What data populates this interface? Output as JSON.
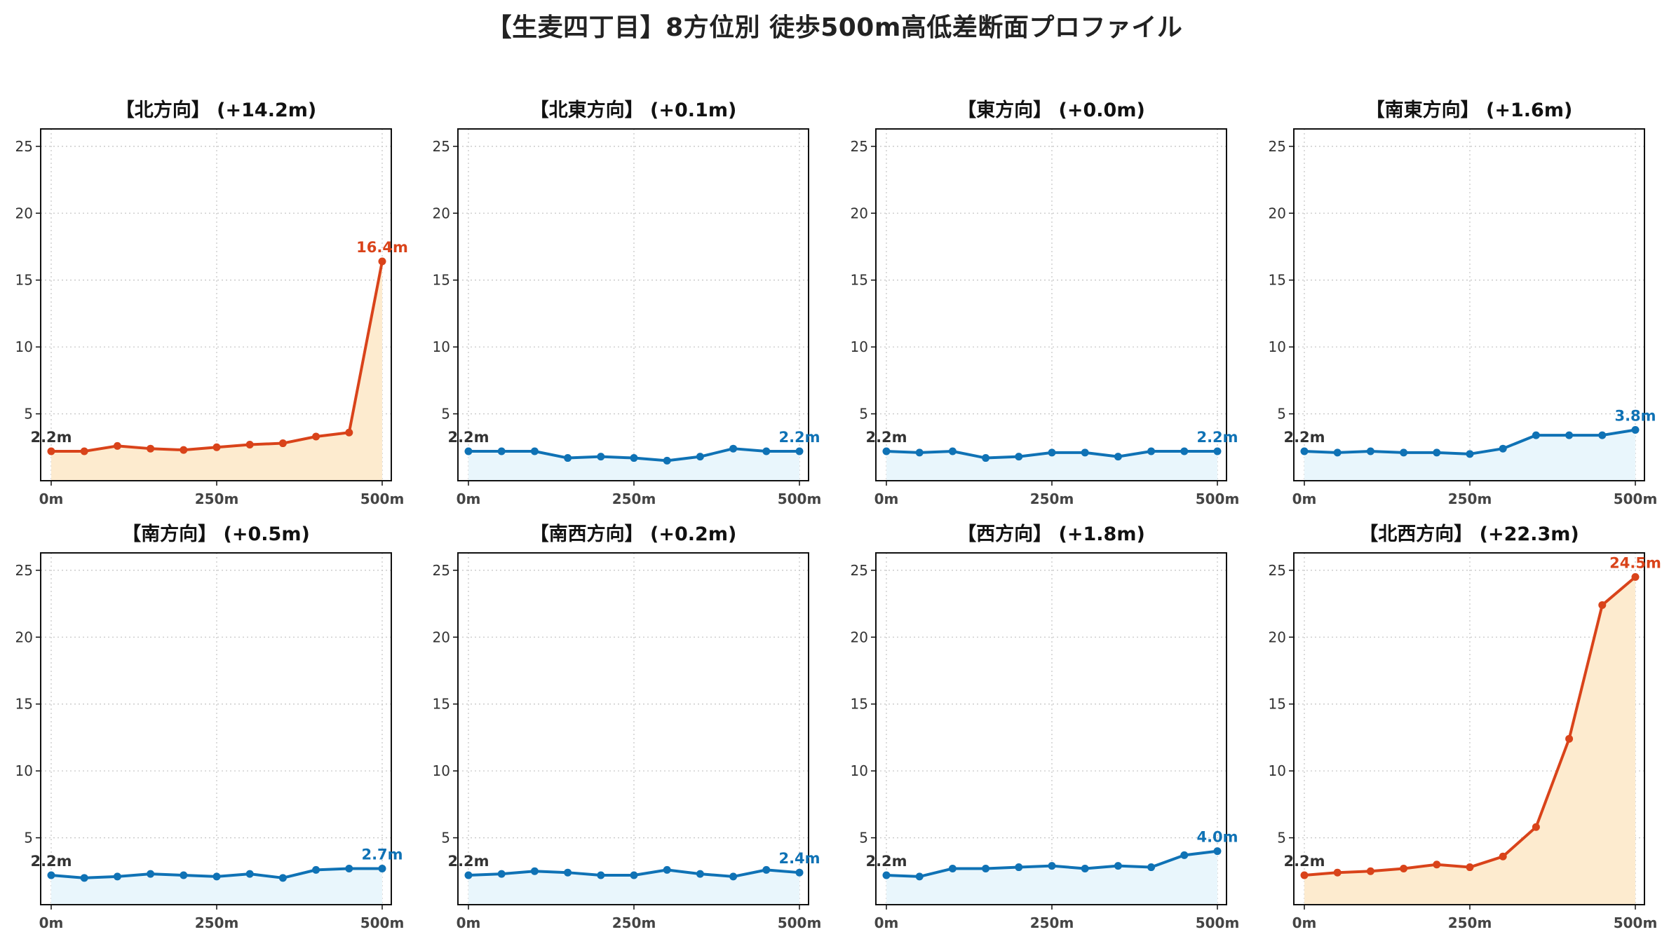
{
  "title": "【生麦四丁目】8方位別 徒歩500m高低差断面プロファイル",
  "colors": {
    "up": "#d9431a",
    "up_fill": "#fdebcf",
    "flat": "#0f72b5",
    "flat_fill": "#e9f6fc"
  },
  "chart_data": [
    {
      "type": "area",
      "title": "【北方向】 (+14.2m)",
      "trend": "up",
      "x": [
        0,
        50,
        100,
        150,
        200,
        250,
        300,
        350,
        400,
        450,
        500
      ],
      "y": [
        2.2,
        2.2,
        2.6,
        2.4,
        2.3,
        2.5,
        2.7,
        2.8,
        3.3,
        3.6,
        16.4
      ],
      "start_label": "2.2m",
      "end_label": "16.4m",
      "xticks": [
        "0m",
        "250m",
        "500m"
      ],
      "yticks": [
        5,
        10,
        15,
        20,
        25
      ],
      "ylim": [
        0,
        26.3
      ],
      "grid": true
    },
    {
      "type": "area",
      "title": "【北東方向】 (+0.1m)",
      "trend": "flat",
      "x": [
        0,
        50,
        100,
        150,
        200,
        250,
        300,
        350,
        400,
        450,
        500
      ],
      "y": [
        2.2,
        2.2,
        2.2,
        1.7,
        1.8,
        1.7,
        1.5,
        1.8,
        2.4,
        2.2,
        2.2
      ],
      "start_label": "2.2m",
      "end_label": "2.2m",
      "xticks": [
        "0m",
        "250m",
        "500m"
      ],
      "yticks": [
        5,
        10,
        15,
        20,
        25
      ],
      "ylim": [
        0,
        26.3
      ],
      "grid": true
    },
    {
      "type": "area",
      "title": "【東方向】 (+0.0m)",
      "trend": "flat",
      "x": [
        0,
        50,
        100,
        150,
        200,
        250,
        300,
        350,
        400,
        450,
        500
      ],
      "y": [
        2.2,
        2.1,
        2.2,
        1.7,
        1.8,
        2.1,
        2.1,
        1.8,
        2.2,
        2.2,
        2.2
      ],
      "start_label": "2.2m",
      "end_label": "2.2m",
      "xticks": [
        "0m",
        "250m",
        "500m"
      ],
      "yticks": [
        5,
        10,
        15,
        20,
        25
      ],
      "ylim": [
        0,
        26.3
      ],
      "grid": true
    },
    {
      "type": "area",
      "title": "【南東方向】 (+1.6m)",
      "trend": "flat",
      "x": [
        0,
        50,
        100,
        150,
        200,
        250,
        300,
        350,
        400,
        450,
        500
      ],
      "y": [
        2.2,
        2.1,
        2.2,
        2.1,
        2.1,
        2.0,
        2.4,
        3.4,
        3.4,
        3.4,
        3.8
      ],
      "start_label": "2.2m",
      "end_label": "3.8m",
      "xticks": [
        "0m",
        "250m",
        "500m"
      ],
      "yticks": [
        5,
        10,
        15,
        20,
        25
      ],
      "ylim": [
        0,
        26.3
      ],
      "grid": true
    },
    {
      "type": "area",
      "title": "【南方向】 (+0.5m)",
      "trend": "flat",
      "x": [
        0,
        50,
        100,
        150,
        200,
        250,
        300,
        350,
        400,
        450,
        500
      ],
      "y": [
        2.2,
        2.0,
        2.1,
        2.3,
        2.2,
        2.1,
        2.3,
        2.0,
        2.6,
        2.7,
        2.7
      ],
      "start_label": "2.2m",
      "end_label": "2.7m",
      "xticks": [
        "0m",
        "250m",
        "500m"
      ],
      "yticks": [
        5,
        10,
        15,
        20,
        25
      ],
      "ylim": [
        0,
        26.3
      ],
      "grid": true
    },
    {
      "type": "area",
      "title": "【南西方向】 (+0.2m)",
      "trend": "flat",
      "x": [
        0,
        50,
        100,
        150,
        200,
        250,
        300,
        350,
        400,
        450,
        500
      ],
      "y": [
        2.2,
        2.3,
        2.5,
        2.4,
        2.2,
        2.2,
        2.6,
        2.3,
        2.1,
        2.6,
        2.4
      ],
      "start_label": "2.2m",
      "end_label": "2.4m",
      "xticks": [
        "0m",
        "250m",
        "500m"
      ],
      "yticks": [
        5,
        10,
        15,
        20,
        25
      ],
      "ylim": [
        0,
        26.3
      ],
      "grid": true
    },
    {
      "type": "area",
      "title": "【西方向】 (+1.8m)",
      "trend": "flat",
      "x": [
        0,
        50,
        100,
        150,
        200,
        250,
        300,
        350,
        400,
        450,
        500
      ],
      "y": [
        2.2,
        2.1,
        2.7,
        2.7,
        2.8,
        2.9,
        2.7,
        2.9,
        2.8,
        3.7,
        4.0
      ],
      "start_label": "2.2m",
      "end_label": "4.0m",
      "xticks": [
        "0m",
        "250m",
        "500m"
      ],
      "yticks": [
        5,
        10,
        15,
        20,
        25
      ],
      "ylim": [
        0,
        26.3
      ],
      "grid": true
    },
    {
      "type": "area",
      "title": "【北西方向】 (+22.3m)",
      "trend": "up",
      "x": [
        0,
        50,
        100,
        150,
        200,
        250,
        300,
        350,
        400,
        450,
        500
      ],
      "y": [
        2.2,
        2.4,
        2.5,
        2.7,
        3.0,
        2.8,
        3.6,
        5.8,
        12.4,
        22.4,
        24.5
      ],
      "start_label": "2.2m",
      "end_label": "24.5m",
      "xticks": [
        "0m",
        "250m",
        "500m"
      ],
      "yticks": [
        5,
        10,
        15,
        20,
        25
      ],
      "ylim": [
        0,
        26.3
      ],
      "grid": true
    }
  ]
}
